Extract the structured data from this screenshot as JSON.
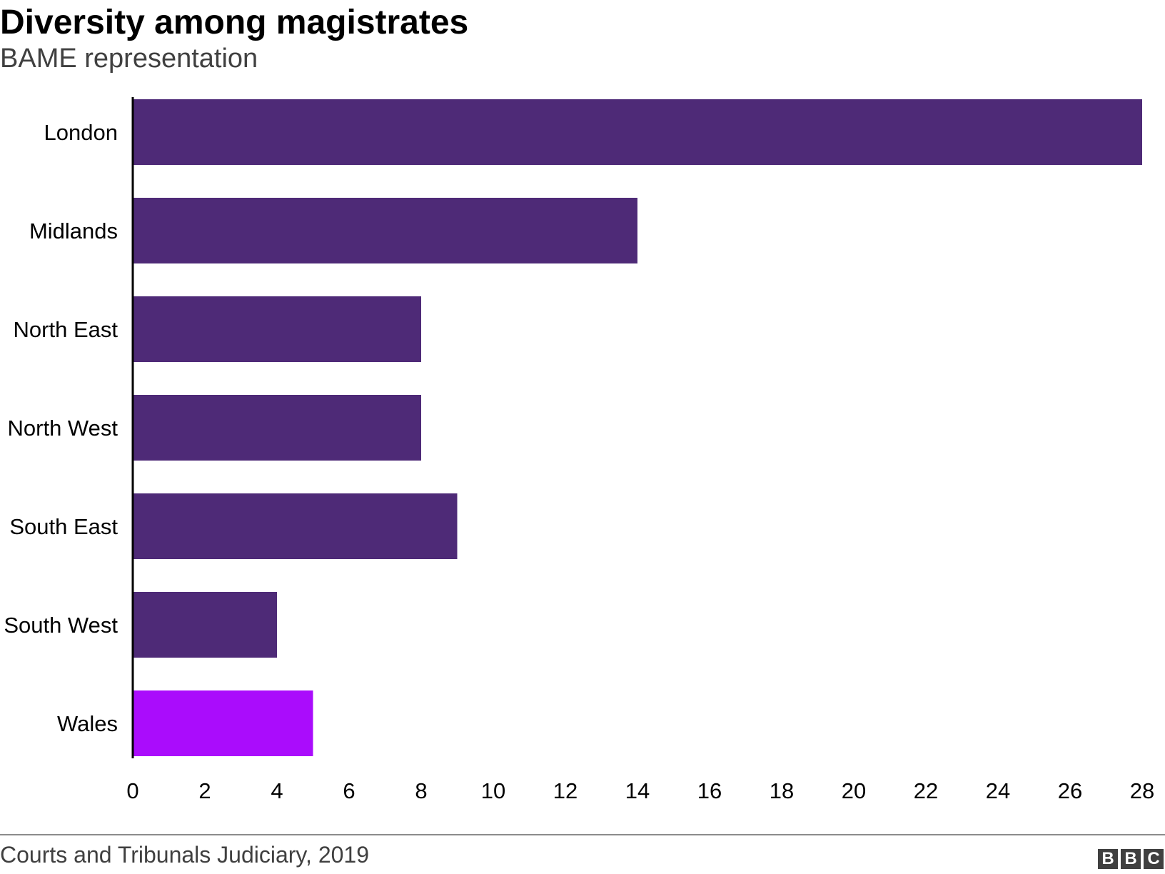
{
  "chart_data": {
    "type": "bar",
    "orientation": "horizontal",
    "title": "Diversity among magistrates",
    "subtitle": "BAME representation",
    "categories": [
      "London",
      "Midlands",
      "North East",
      "North West",
      "South East",
      "South West",
      "Wales"
    ],
    "values": [
      28,
      14,
      8,
      8,
      9,
      4,
      5
    ],
    "bar_colors": [
      "#4e2a77",
      "#4e2a77",
      "#4e2a77",
      "#4e2a77",
      "#4e2a77",
      "#4e2a77",
      "#aa0cfc"
    ],
    "xlim": [
      0,
      28
    ],
    "x_ticks": [
      0,
      2,
      4,
      6,
      8,
      10,
      12,
      14,
      16,
      18,
      20,
      22,
      24,
      26,
      28
    ],
    "xlabel": "",
    "ylabel": "",
    "grid": false,
    "legend": "none"
  },
  "footer": {
    "source": "Courts and Tribunals Judiciary, 2019",
    "logo": [
      "B",
      "B",
      "C"
    ]
  }
}
